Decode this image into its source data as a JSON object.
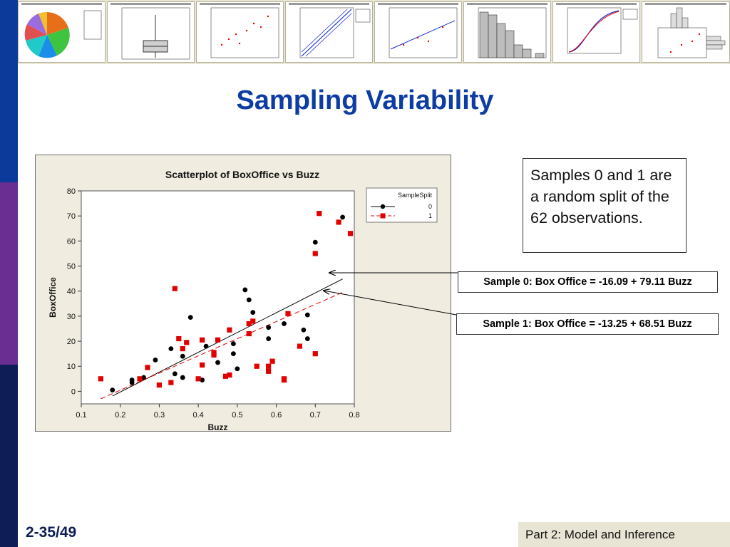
{
  "slide": {
    "title": "Sampling Variability",
    "note_text": "Samples 0 and 1 are a random split of the 62 observations.",
    "equation_0": "Sample 0: Box Office = -16.09 + 79.11 Buzz",
    "equation_1": "Sample 1: Box Office = -13.25 + 68.51 Buzz",
    "slide_number": "2-35/49",
    "footer": "Part 2: Model and Inference"
  },
  "colors": {
    "title": "#0d3da3",
    "series_0": "#000000",
    "series_1": "#e00000",
    "chart_bg": "#f0ede0"
  },
  "chart_data": {
    "type": "scatter",
    "title": "Scatterplot of BoxOffice vs Buzz",
    "xlabel": "Buzz",
    "ylabel": "BoxOffice",
    "xlim": [
      0.1,
      0.8
    ],
    "ylim": [
      -5,
      80
    ],
    "xticks": [
      0.1,
      0.2,
      0.3,
      0.4,
      0.5,
      0.6,
      0.7,
      0.8
    ],
    "yticks": [
      0,
      10,
      20,
      30,
      40,
      50,
      60,
      70,
      80
    ],
    "legend_title": "SampleSplit",
    "legend_position": "top-right",
    "series": [
      {
        "name": "0",
        "marker": "circle",
        "line": "solid",
        "fit": {
          "intercept": -16.09,
          "slope": 79.11
        },
        "points": [
          [
            0.18,
            0.5
          ],
          [
            0.23,
            3.5
          ],
          [
            0.23,
            4.5
          ],
          [
            0.26,
            5.5
          ],
          [
            0.29,
            12.5
          ],
          [
            0.33,
            17.0
          ],
          [
            0.34,
            7.0
          ],
          [
            0.36,
            14.0
          ],
          [
            0.36,
            5.5
          ],
          [
            0.38,
            29.5
          ],
          [
            0.41,
            4.5
          ],
          [
            0.42,
            18.0
          ],
          [
            0.44,
            15.5
          ],
          [
            0.45,
            11.5
          ],
          [
            0.49,
            15.0
          ],
          [
            0.49,
            19.0
          ],
          [
            0.5,
            9.0
          ],
          [
            0.52,
            40.5
          ],
          [
            0.53,
            36.5
          ],
          [
            0.54,
            31.5
          ],
          [
            0.58,
            25.5
          ],
          [
            0.58,
            21.0
          ],
          [
            0.62,
            27.0
          ],
          [
            0.67,
            24.5
          ],
          [
            0.68,
            30.5
          ],
          [
            0.68,
            21.0
          ],
          [
            0.7,
            59.5
          ],
          [
            0.77,
            69.5
          ]
        ]
      },
      {
        "name": "1",
        "marker": "square",
        "line": "dashed",
        "fit": {
          "intercept": -13.25,
          "slope": 68.51
        },
        "points": [
          [
            0.15,
            5.0
          ],
          [
            0.25,
            5.0
          ],
          [
            0.27,
            9.5
          ],
          [
            0.3,
            2.5
          ],
          [
            0.33,
            3.5
          ],
          [
            0.34,
            41.0
          ],
          [
            0.35,
            21.0
          ],
          [
            0.36,
            17.0
          ],
          [
            0.37,
            19.5
          ],
          [
            0.4,
            5.0
          ],
          [
            0.41,
            20.5
          ],
          [
            0.41,
            10.5
          ],
          [
            0.44,
            14.5
          ],
          [
            0.44,
            15.5
          ],
          [
            0.45,
            20.5
          ],
          [
            0.47,
            6.0
          ],
          [
            0.48,
            6.5
          ],
          [
            0.48,
            24.5
          ],
          [
            0.53,
            27.0
          ],
          [
            0.53,
            23.0
          ],
          [
            0.54,
            28.0
          ],
          [
            0.55,
            10.0
          ],
          [
            0.58,
            10.0
          ],
          [
            0.58,
            8.0
          ],
          [
            0.59,
            12.0
          ],
          [
            0.62,
            5.0
          ],
          [
            0.62,
            4.5
          ],
          [
            0.63,
            31.0
          ],
          [
            0.66,
            18.0
          ],
          [
            0.7,
            15.0
          ],
          [
            0.7,
            55.0
          ],
          [
            0.71,
            71.0
          ],
          [
            0.76,
            67.5
          ],
          [
            0.79,
            63.0
          ]
        ]
      }
    ]
  }
}
